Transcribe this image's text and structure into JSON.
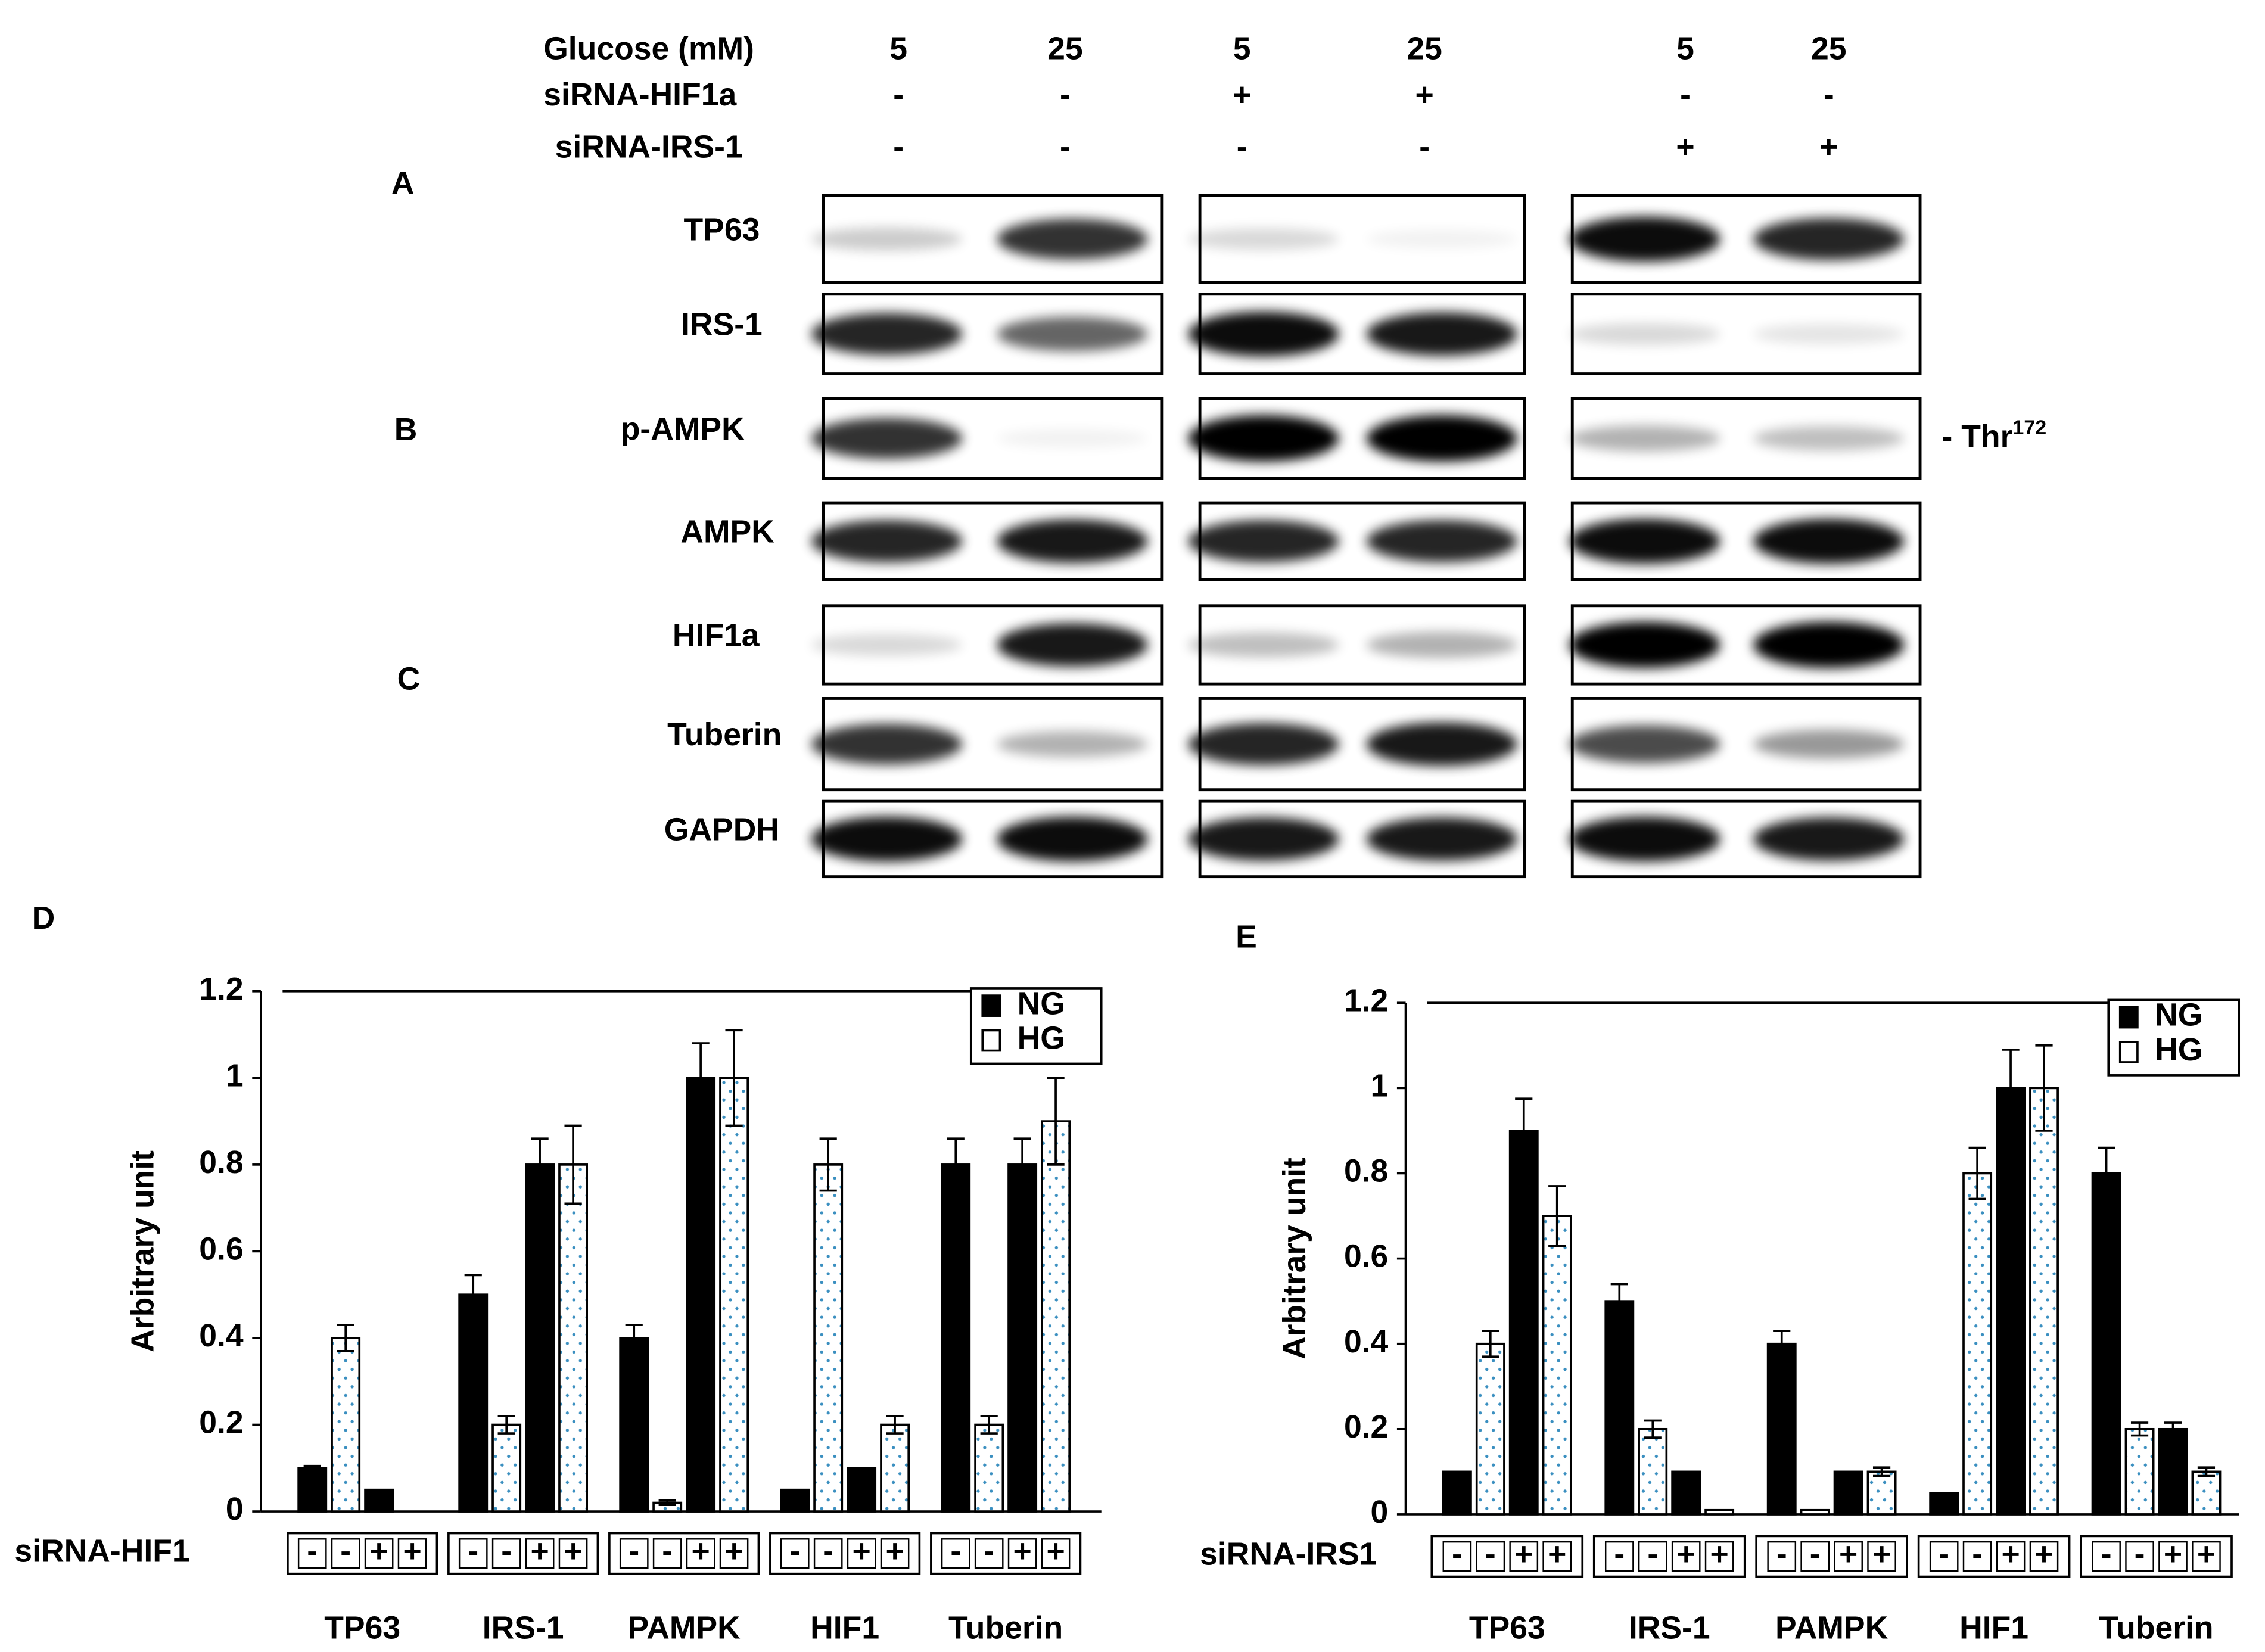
{
  "blot": {
    "conditions": [
      {
        "label": "Glucose (mM)",
        "values": [
          "5",
          "25",
          "5",
          "25",
          "5",
          "25"
        ]
      },
      {
        "label": "siRNA-HIF1a",
        "values": [
          "-",
          "-",
          "+",
          "+",
          "-",
          "-"
        ]
      },
      {
        "label": "siRNA-IRS-1",
        "values": [
          "-",
          "-",
          "-",
          "-",
          "+",
          "+"
        ]
      }
    ],
    "panels": [
      "A",
      "B",
      "C"
    ],
    "proteins": [
      "TP63",
      "IRS-1",
      "p-AMPK",
      "AMPK",
      "HIF1a",
      "Tuberin",
      "GAPDH"
    ],
    "site_label": "Thr",
    "site_superscript": "172"
  },
  "chart_data": [
    {
      "type": "bar",
      "panel": "D",
      "ylabel": "Arbitrary unit",
      "ylim": [
        0,
        1.2
      ],
      "yticks": [
        0,
        0.2,
        0.4,
        0.6,
        0.8,
        1,
        1.2
      ],
      "groups": [
        "TP63",
        "IRS-1",
        "PAMPK",
        "HIF1",
        "Tuberin"
      ],
      "sirna_label": "siRNA-HIF1",
      "sirna_signs": [
        "-",
        "-",
        "+",
        "+"
      ],
      "legend": "upper right",
      "series": [
        {
          "name": "NG",
          "color": "#000000",
          "fill": "solid",
          "values": [
            0.1,
            0.05,
            0.5,
            0.8,
            0.4,
            1.0,
            0.05,
            0.1,
            0.8,
            0.8
          ],
          "errors": [
            0.005,
            null,
            0.045,
            0.06,
            0.03,
            0.08,
            null,
            null,
            0.06,
            0.06
          ]
        },
        {
          "name": "HG",
          "color": "#ffffff",
          "fill": "dotted",
          "values": [
            0.4,
            0,
            0.2,
            0.8,
            0.02,
            1.0,
            0.8,
            0.2,
            0.2,
            0.9
          ],
          "errors": [
            0.03,
            null,
            0.02,
            0.09,
            0.005,
            0.11,
            0.06,
            0.02,
            0.02,
            0.1
          ]
        }
      ]
    },
    {
      "type": "bar",
      "panel": "E",
      "ylabel": "Arbitrary unit",
      "ylim": [
        0,
        1.2
      ],
      "yticks": [
        0,
        0.2,
        0.4,
        0.6,
        0.8,
        1,
        1.2
      ],
      "groups": [
        "TP63",
        "IRS-1",
        "PAMPK",
        "HIF1",
        "Tuberin"
      ],
      "sirna_label": "siRNA-IRS1",
      "sirna_signs": [
        "-",
        "-",
        "+",
        "+"
      ],
      "legend": "upper right",
      "series": [
        {
          "name": "NG",
          "color": "#000000",
          "fill": "solid",
          "values": [
            0.1,
            0.9,
            0.5,
            0.1,
            0.4,
            0.1,
            0.05,
            1.0,
            0.8,
            0.2
          ],
          "errors": [
            null,
            0.075,
            0.04,
            null,
            0.03,
            null,
            null,
            0.09,
            0.06,
            0.015
          ]
        },
        {
          "name": "HG",
          "color": "#ffffff",
          "fill": "dotted",
          "values": [
            0.4,
            0.7,
            0.2,
            0.01,
            0.01,
            0.1,
            0.8,
            1.0,
            0.2,
            0.1
          ],
          "errors": [
            0.03,
            0.07,
            0.02,
            null,
            null,
            0.01,
            0.06,
            0.1,
            0.015,
            0.01
          ]
        }
      ]
    }
  ]
}
